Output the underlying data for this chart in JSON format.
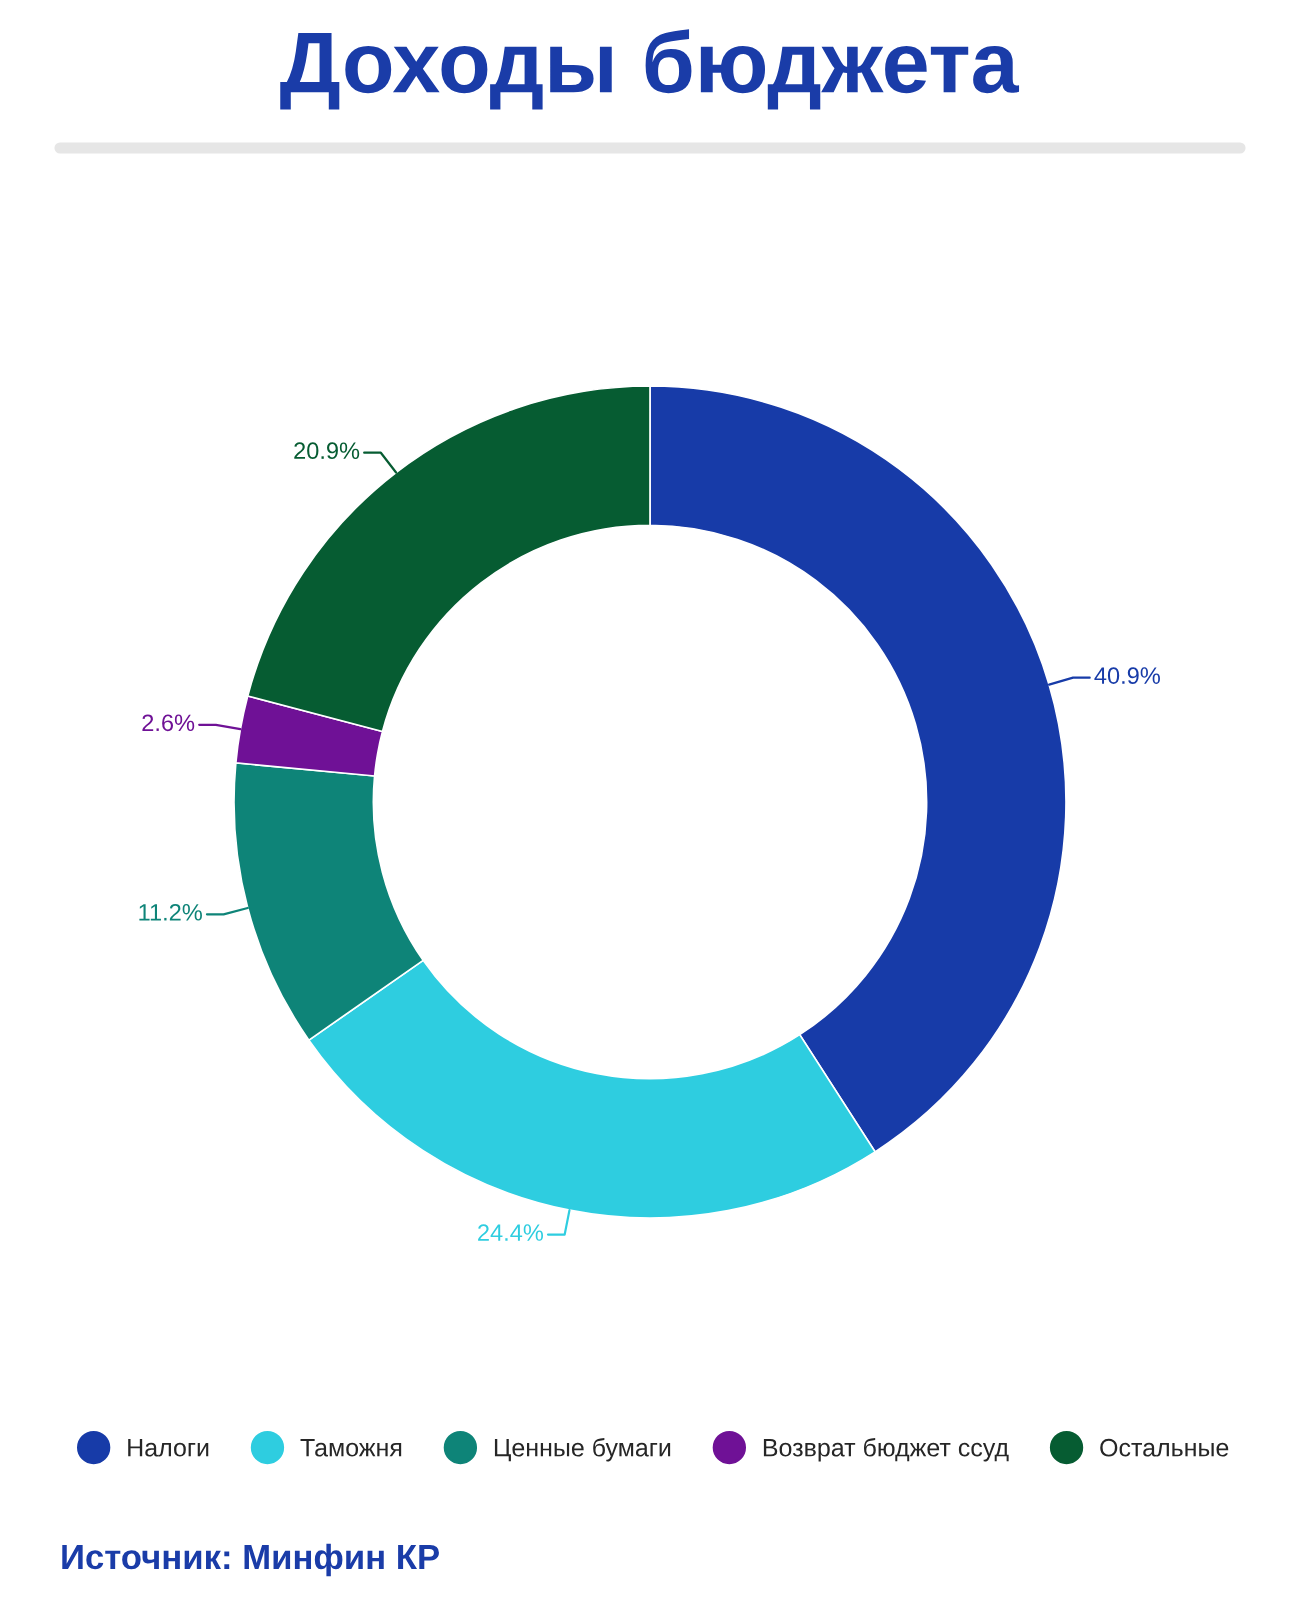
{
  "chart_data": {
    "type": "donut",
    "title": "Доходы бюджета",
    "categories": [
      "Налоги",
      "Таможня",
      "Ценные бумаги",
      "Возврат бюджет ссуд",
      "Остальные"
    ],
    "values": [
      40.9,
      24.4,
      11.2,
      2.6,
      20.9
    ],
    "colors": [
      "#173ba8",
      "#2ecde0",
      "#0e8478",
      "#6f1196",
      "#065c32"
    ],
    "value_labels": [
      "40.9%",
      "24.4%",
      "11.2%",
      "2.6%",
      "20.9%"
    ],
    "legend": "bottom",
    "annotations": [
      "Источник: Минфин КР"
    ]
  }
}
